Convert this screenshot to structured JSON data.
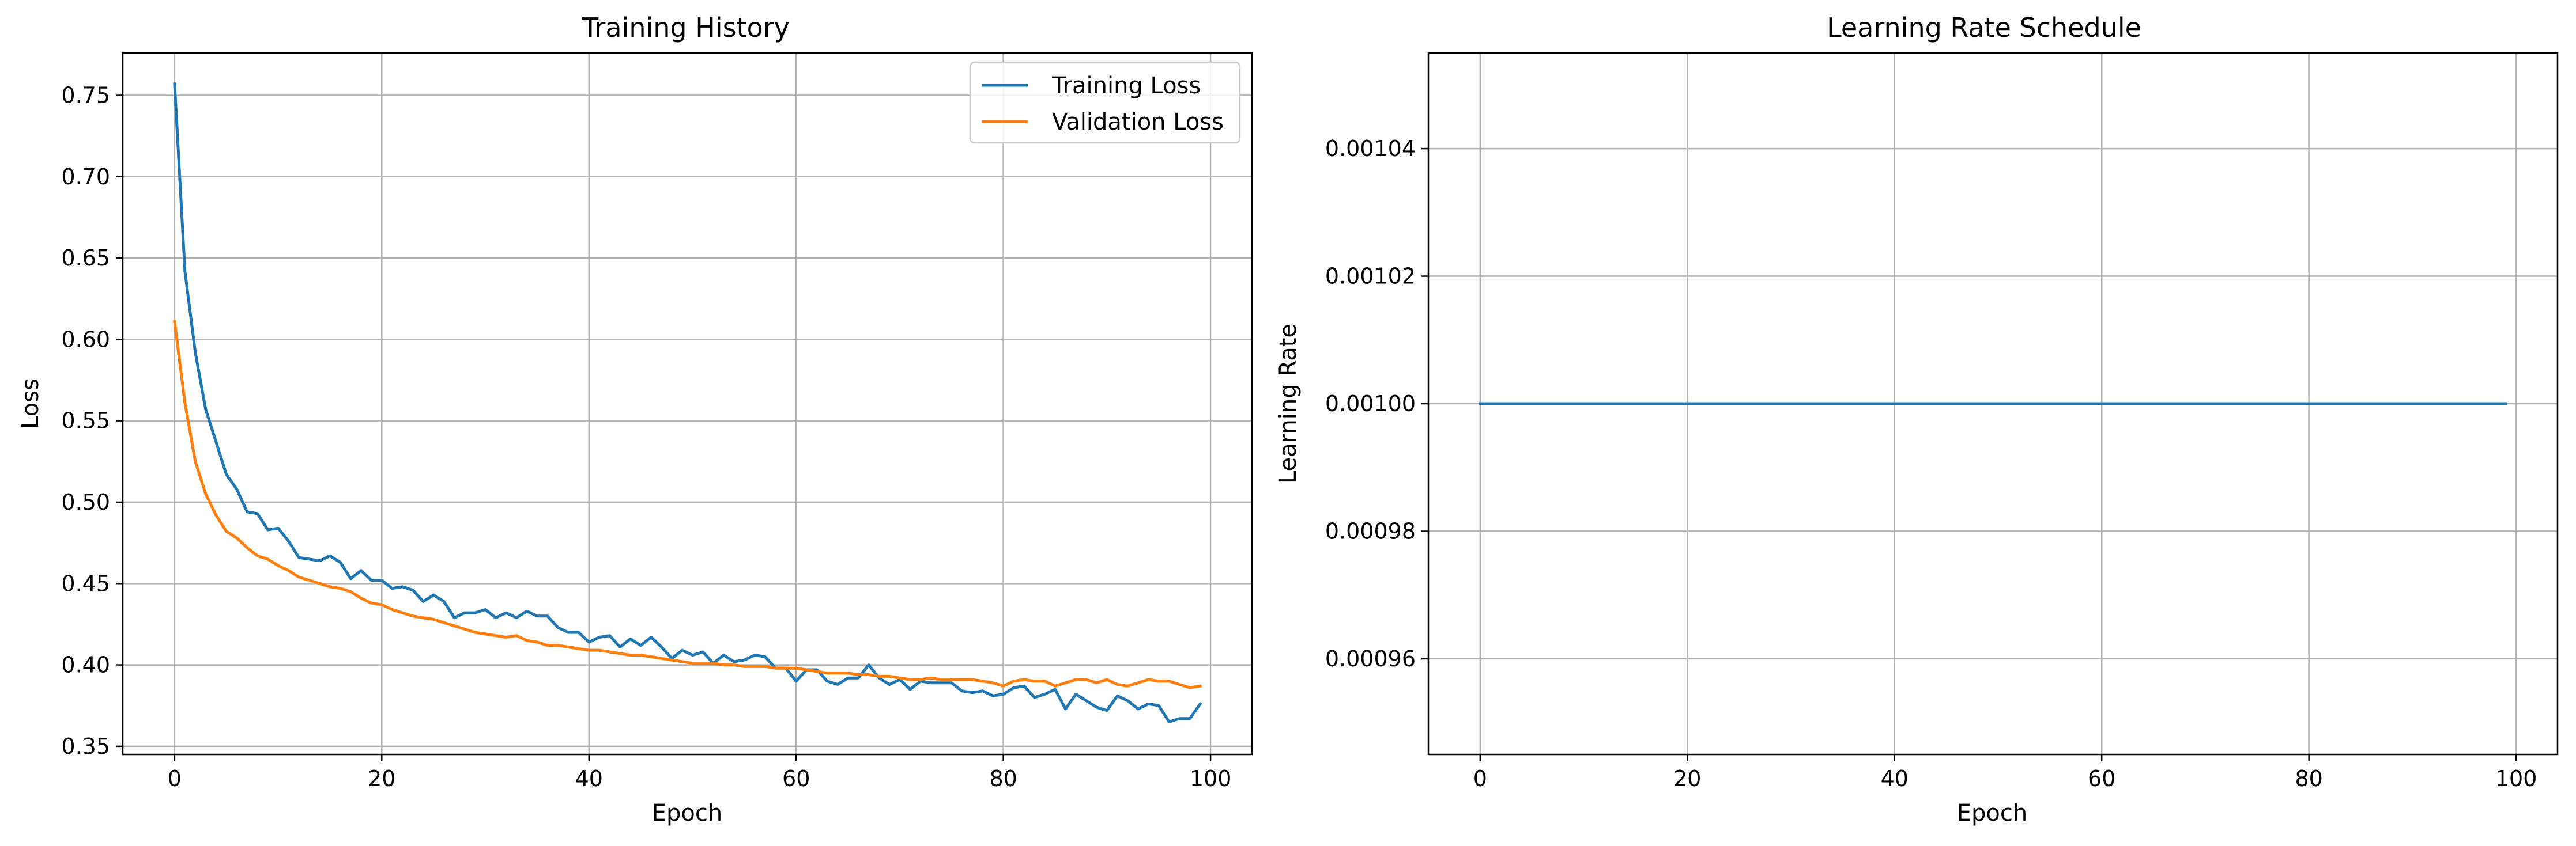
{
  "colors": {
    "training": "#1f77b4",
    "validation": "#ff7f0e",
    "lr": "#1f77b4",
    "grid": "#b0b0b0",
    "axes": "#000000"
  },
  "chart_data": [
    {
      "type": "line",
      "title": "Training History",
      "xlabel": "Epoch",
      "ylabel": "Loss",
      "xlim": [
        -5,
        104
      ],
      "ylim": [
        0.345,
        0.776
      ],
      "grid": true,
      "legend": "top-right",
      "xticks": [
        0,
        20,
        40,
        60,
        80,
        100
      ],
      "xtick_labels": [
        "0",
        "20",
        "40",
        "60",
        "80",
        "100"
      ],
      "yticks": [
        0.35,
        0.4,
        0.45,
        0.5,
        0.55,
        0.6,
        0.65,
        0.7,
        0.75
      ],
      "ytick_labels": [
        "0.35",
        "0.40",
        "0.45",
        "0.50",
        "0.55",
        "0.60",
        "0.65",
        "0.70",
        "0.75"
      ],
      "x": [
        0,
        1,
        2,
        3,
        4,
        5,
        6,
        7,
        8,
        9,
        10,
        11,
        12,
        13,
        14,
        15,
        16,
        17,
        18,
        19,
        20,
        21,
        22,
        23,
        24,
        25,
        26,
        27,
        28,
        29,
        30,
        31,
        32,
        33,
        34,
        35,
        36,
        37,
        38,
        39,
        40,
        41,
        42,
        43,
        44,
        45,
        46,
        47,
        48,
        49,
        50,
        51,
        52,
        53,
        54,
        55,
        56,
        57,
        58,
        59,
        60,
        61,
        62,
        63,
        64,
        65,
        66,
        67,
        68,
        69,
        70,
        71,
        72,
        73,
        74,
        75,
        76,
        77,
        78,
        79,
        80,
        81,
        82,
        83,
        84,
        85,
        86,
        87,
        88,
        89,
        90,
        91,
        92,
        93,
        94,
        95,
        96,
        97,
        98,
        99
      ],
      "series": [
        {
          "name": "Training Loss",
          "values": [
            0.757,
            0.642,
            0.592,
            0.557,
            0.537,
            0.517,
            0.508,
            0.494,
            0.493,
            0.483,
            0.484,
            0.476,
            0.466,
            0.465,
            0.464,
            0.467,
            0.463,
            0.453,
            0.458,
            0.452,
            0.452,
            0.447,
            0.448,
            0.446,
            0.439,
            0.443,
            0.439,
            0.429,
            0.432,
            0.432,
            0.434,
            0.429,
            0.432,
            0.429,
            0.433,
            0.43,
            0.43,
            0.423,
            0.42,
            0.42,
            0.414,
            0.417,
            0.418,
            0.411,
            0.416,
            0.412,
            0.417,
            0.411,
            0.404,
            0.409,
            0.406,
            0.408,
            0.401,
            0.406,
            0.402,
            0.403,
            0.406,
            0.405,
            0.398,
            0.398,
            0.39,
            0.397,
            0.397,
            0.39,
            0.388,
            0.392,
            0.392,
            0.4,
            0.392,
            0.388,
            0.391,
            0.385,
            0.39,
            0.389,
            0.389,
            0.389,
            0.384,
            0.383,
            0.384,
            0.381,
            0.382,
            0.386,
            0.387,
            0.38,
            0.382,
            0.385,
            0.373,
            0.382,
            0.378,
            0.374,
            0.372,
            0.381,
            0.378,
            0.373,
            0.376,
            0.375,
            0.365,
            0.367,
            0.367,
            0.376
          ]
        },
        {
          "name": "Validation Loss",
          "values": [
            0.611,
            0.561,
            0.525,
            0.505,
            0.492,
            0.482,
            0.478,
            0.472,
            0.467,
            0.465,
            0.461,
            0.458,
            0.454,
            0.452,
            0.45,
            0.448,
            0.447,
            0.445,
            0.441,
            0.438,
            0.437,
            0.434,
            0.432,
            0.43,
            0.429,
            0.428,
            0.426,
            0.424,
            0.422,
            0.42,
            0.419,
            0.418,
            0.417,
            0.418,
            0.415,
            0.414,
            0.412,
            0.412,
            0.411,
            0.41,
            0.409,
            0.409,
            0.408,
            0.407,
            0.406,
            0.406,
            0.405,
            0.404,
            0.403,
            0.402,
            0.401,
            0.401,
            0.401,
            0.4,
            0.4,
            0.399,
            0.399,
            0.399,
            0.398,
            0.398,
            0.398,
            0.397,
            0.396,
            0.395,
            0.395,
            0.395,
            0.394,
            0.394,
            0.393,
            0.393,
            0.392,
            0.391,
            0.391,
            0.392,
            0.391,
            0.391,
            0.391,
            0.391,
            0.39,
            0.389,
            0.387,
            0.39,
            0.391,
            0.39,
            0.39,
            0.387,
            0.389,
            0.391,
            0.391,
            0.389,
            0.391,
            0.388,
            0.387,
            0.389,
            0.391,
            0.39,
            0.39,
            0.388,
            0.386,
            0.387
          ]
        }
      ]
    },
    {
      "type": "line",
      "title": "Learning Rate Schedule",
      "xlabel": "Epoch",
      "ylabel": "Learning Rate",
      "xlim": [
        -5,
        104
      ],
      "ylim": [
        0.000945,
        0.001055
      ],
      "grid": true,
      "legend": "none",
      "xticks": [
        0,
        20,
        40,
        60,
        80,
        100
      ],
      "xtick_labels": [
        "0",
        "20",
        "40",
        "60",
        "80",
        "100"
      ],
      "yticks": [
        0.00096,
        0.00098,
        0.001,
        0.00102,
        0.00104
      ],
      "ytick_labels": [
        "0.00096",
        "0.00098",
        "0.00100",
        "0.00102",
        "0.00104"
      ],
      "x": [
        0,
        99
      ],
      "series": [
        {
          "values": [
            0.001,
            0.001
          ]
        }
      ]
    }
  ]
}
